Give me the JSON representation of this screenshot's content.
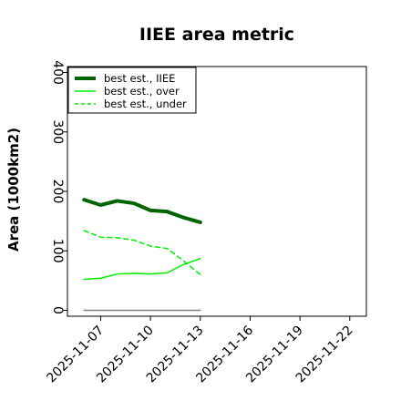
{
  "chart_data": {
    "type": "line",
    "title": "IIEE area metric",
    "xlabel": "",
    "ylabel": "Area (1000km2)",
    "x": [
      "2025-11-06",
      "2025-11-07",
      "2025-11-08",
      "2025-11-09",
      "2025-11-10",
      "2025-11-11",
      "2025-11-12",
      "2025-11-13"
    ],
    "xlim": [
      "2025-11-05",
      "2025-11-23"
    ],
    "ylim": [
      -10,
      410
    ],
    "x_ticks": [
      "2025-11-07",
      "2025-11-10",
      "2025-11-13",
      "2025-11-16",
      "2025-11-19",
      "2025-11-22"
    ],
    "y_ticks": [
      0,
      100,
      200,
      300,
      400
    ],
    "grid": false,
    "legend": "top-left",
    "series": [
      {
        "name": "best est., IIEE",
        "color": "#006400",
        "style": "solid-thick",
        "values": [
          186,
          177,
          184,
          180,
          168,
          166,
          156,
          148
        ]
      },
      {
        "name": "best est., over",
        "color": "#00ee00",
        "style": "solid",
        "values": [
          52,
          54,
          61,
          62,
          61,
          63,
          77,
          87
        ]
      },
      {
        "name": "best est., under",
        "color": "#00ee00",
        "style": "dashed",
        "values": [
          134,
          123,
          122,
          118,
          108,
          104,
          83,
          60
        ]
      },
      {
        "name": "",
        "color": "#808080",
        "style": "solid",
        "values": [
          0,
          0,
          0,
          0,
          0,
          0,
          0,
          0
        ]
      }
    ]
  }
}
